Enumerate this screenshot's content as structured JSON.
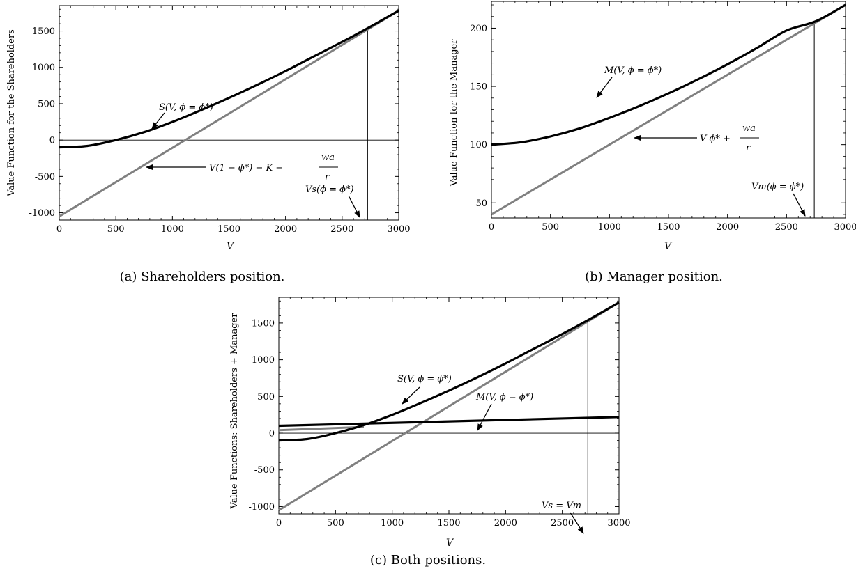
{
  "chart_data": [
    {
      "type": "line",
      "caption": "(a) Shareholders position.",
      "xlabel": "V",
      "ylabel": "Value Function for the Shareholders",
      "xlim": [
        0,
        3000
      ],
      "ylim": [
        -1100,
        1850
      ],
      "xticks": [
        "0",
        "500",
        "1000",
        "1500",
        "2000",
        "2500",
        "3000"
      ],
      "yticks": [
        "-1000",
        "-500",
        "0",
        "500",
        "1000",
        "1500"
      ],
      "grid": false,
      "series": [
        {
          "id": "S",
          "color": "#000000",
          "x": [
            0,
            250,
            500,
            750,
            1000,
            1250,
            1500,
            1750,
            2000,
            2250,
            2500,
            2750,
            3000
          ],
          "y": [
            -100,
            -80,
            0,
            110,
            250,
            410,
            580,
            760,
            950,
            1150,
            1350,
            1560,
            1780
          ]
        },
        {
          "id": "line",
          "color": "#808080",
          "x": [
            0,
            3000
          ],
          "y": [
            -1050,
            1780
          ]
        }
      ],
      "vline": 2725,
      "annotations": [
        {
          "text": "S(V, ϕ = ϕ*)"
        },
        {
          "text": "V(1 − ϕ*) − K −"
        },
        {
          "text": "wa"
        },
        {
          "text": "r"
        },
        {
          "text": "Vs(ϕ = ϕ*)"
        }
      ]
    },
    {
      "type": "line",
      "caption": "(b) Manager position.",
      "xlabel": "V",
      "ylabel": "Value Function for the Manager",
      "xlim": [
        0,
        3000
      ],
      "ylim": [
        37,
        223
      ],
      "xticks": [
        "0",
        "500",
        "1000",
        "1500",
        "2000",
        "2500",
        "3000"
      ],
      "yticks": [
        "50",
        "100",
        "150",
        "200"
      ],
      "grid": false,
      "series": [
        {
          "id": "M",
          "color": "#000000",
          "x": [
            0,
            250,
            500,
            750,
            1000,
            1250,
            1500,
            1750,
            2000,
            2250,
            2500,
            2750,
            3000
          ],
          "y": [
            100,
            102,
            107,
            114,
            123,
            133,
            144,
            156,
            169,
            183,
            198,
            206,
            220
          ]
        },
        {
          "id": "line",
          "color": "#808080",
          "x": [
            0,
            3000
          ],
          "y": [
            40,
            220
          ]
        }
      ],
      "vline": 2735,
      "annotations": [
        {
          "text": "M(V, ϕ = ϕ*)"
        },
        {
          "text": "V ϕ* +"
        },
        {
          "text": "wa"
        },
        {
          "text": "r"
        },
        {
          "text": "Vm(ϕ = ϕ*)"
        }
      ]
    },
    {
      "type": "line",
      "caption": "(c) Both positions.",
      "xlabel": "V",
      "ylabel": "Value Functions: Shareholders + Manager",
      "xlim": [
        0,
        3000
      ],
      "ylim": [
        -1100,
        1850
      ],
      "xticks": [
        "0",
        "500",
        "1000",
        "1500",
        "2000",
        "2500",
        "3000"
      ],
      "yticks": [
        "-1000",
        "-500",
        "0",
        "500",
        "1000",
        "1500"
      ],
      "grid": false,
      "series": [
        {
          "id": "S",
          "color": "#000000",
          "x": [
            0,
            250,
            500,
            750,
            1000,
            1250,
            1500,
            1750,
            2000,
            2250,
            2500,
            2750,
            3000
          ],
          "y": [
            -100,
            -80,
            0,
            110,
            250,
            410,
            580,
            760,
            950,
            1150,
            1350,
            1560,
            1780
          ]
        },
        {
          "id": "line",
          "color": "#808080",
          "x": [
            0,
            3000
          ],
          "y": [
            -1050,
            1780
          ]
        },
        {
          "id": "M",
          "color": "#000000",
          "x": [
            0,
            3000
          ],
          "y": [
            100,
            220
          ]
        },
        {
          "id": "Mline",
          "color": "#808080",
          "x": [
            0,
            750
          ],
          "y": [
            40,
            85
          ]
        }
      ],
      "vline": 2725,
      "annotations": [
        {
          "text": "S(V, ϕ = ϕ*)"
        },
        {
          "text": "M(V, ϕ = ϕ*)"
        },
        {
          "text": "Vs = Vm"
        }
      ]
    }
  ]
}
